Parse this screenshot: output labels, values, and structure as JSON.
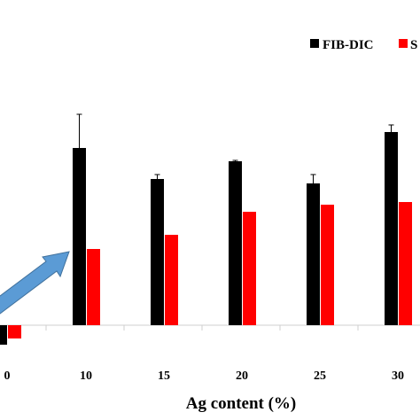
{
  "chart_data": {
    "type": "bar",
    "categories": [
      "0",
      "10",
      "15",
      "20",
      "25",
      "30"
    ],
    "xlabel": "Ag content (%)",
    "ylabel": "",
    "ylim": [
      -27,
      390
    ],
    "grid": false,
    "legend_position": "top-right",
    "series": [
      {
        "name": "FIB-DIC",
        "color": "#000000",
        "values": [
          -22,
          200,
          165,
          185,
          160,
          218
        ],
        "errors": [
          0,
          38,
          5,
          1,
          10,
          8
        ]
      },
      {
        "name": "S",
        "color": "#ff0000",
        "values": [
          -15,
          86,
          102,
          128,
          136,
          139
        ],
        "errors": [
          0,
          0,
          0,
          0,
          0,
          0
        ]
      }
    ],
    "annotations": [
      {
        "type": "arrow",
        "color": "#5b9bd5",
        "description": "blue arrow pointing up-right"
      }
    ]
  }
}
